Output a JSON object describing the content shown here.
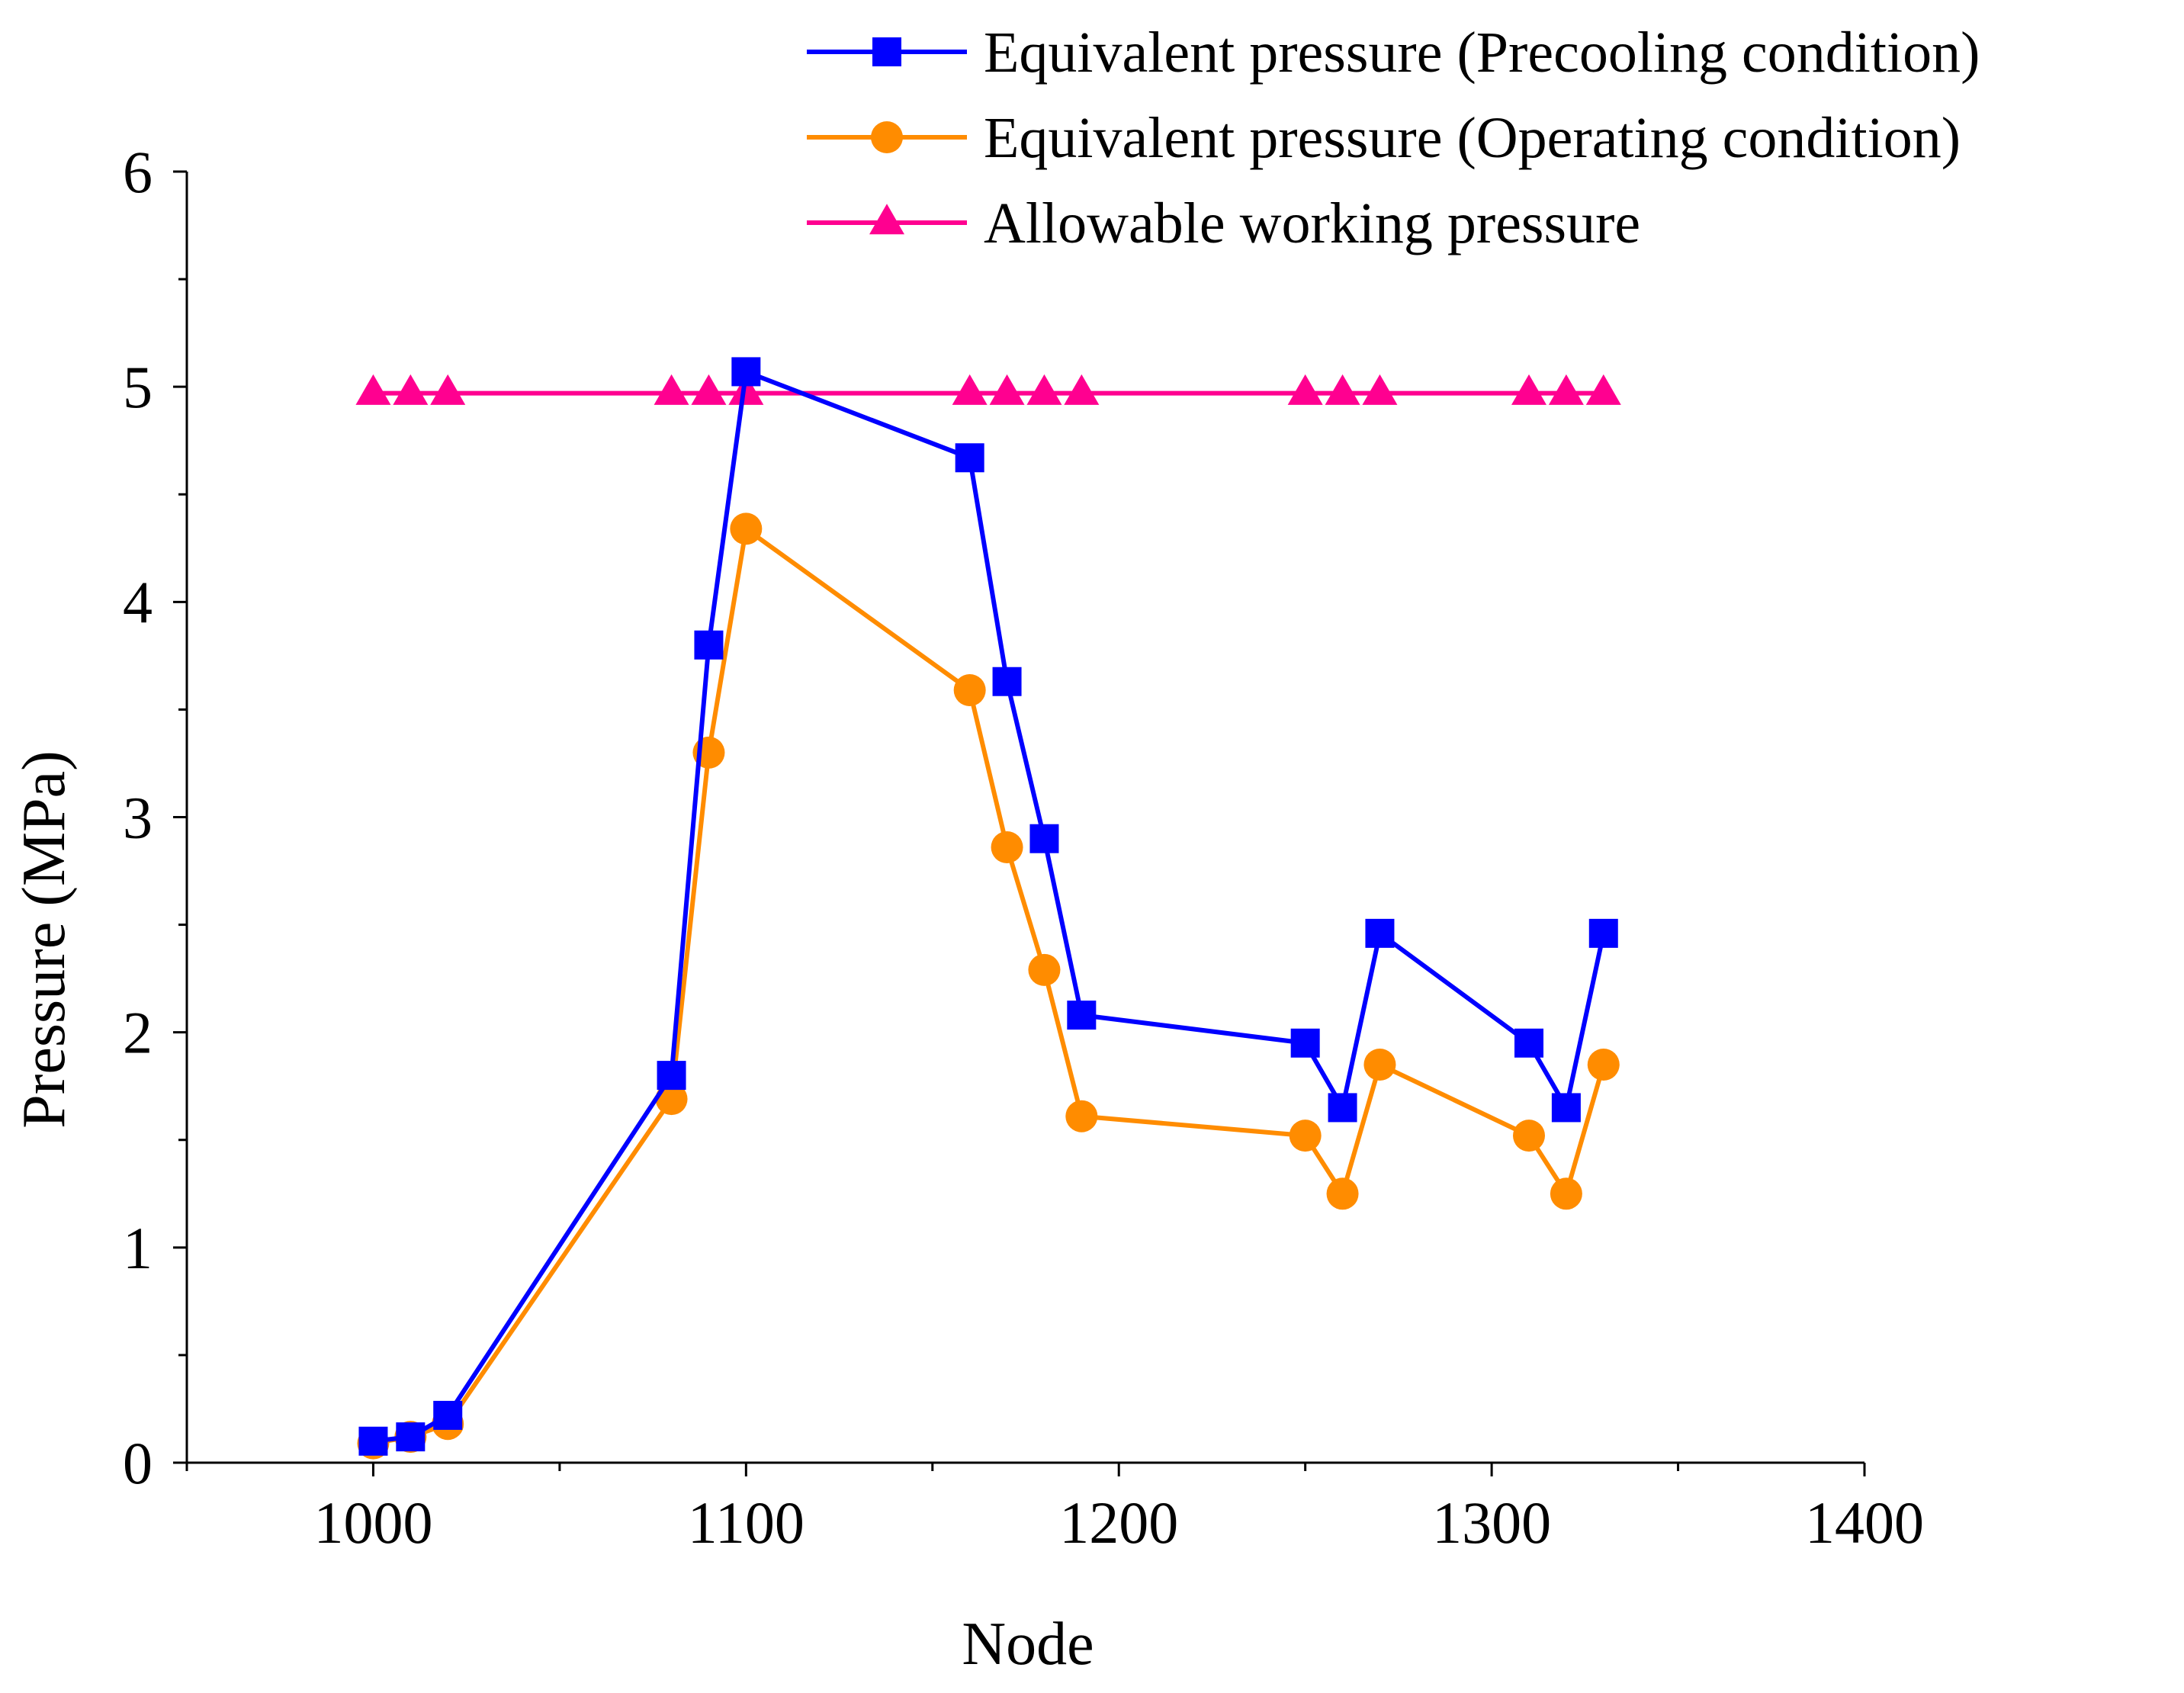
{
  "chart_data": {
    "type": "line",
    "title": "",
    "xlabel": "Node",
    "ylabel": "Pressure (MPa)",
    "xlim": [
      950,
      1400
    ],
    "ylim": [
      0,
      6
    ],
    "x_ticks": [
      1000,
      1100,
      1200,
      1300,
      1400
    ],
    "y_ticks": [
      0,
      1,
      2,
      3,
      4,
      5,
      6
    ],
    "x_tick_labels": [
      "1000",
      "1100",
      "1200",
      "1300",
      "1400"
    ],
    "y_tick_labels": [
      "0",
      "1",
      "2",
      "3",
      "4",
      "5",
      "6"
    ],
    "grid": false,
    "legend_position": "top-right",
    "series": [
      {
        "name": "Equivalent pressure (Precooling condition)",
        "color": "#0000ff",
        "marker": "square",
        "x": [
          1000,
          1010,
          1020,
          1080,
          1090,
          1100,
          1160,
          1170,
          1180,
          1190,
          1250,
          1260,
          1270,
          1310,
          1320,
          1330
        ],
        "values": [
          0.1,
          0.12,
          0.22,
          1.8,
          3.8,
          5.07,
          4.67,
          3.63,
          2.9,
          2.08,
          1.95,
          1.65,
          2.46,
          1.95,
          1.65,
          2.46
        ]
      },
      {
        "name": "Equivalent pressure (Operating condition)",
        "color": "#ff8c00",
        "marker": "circle",
        "x": [
          1000,
          1010,
          1020,
          1080,
          1090,
          1100,
          1160,
          1170,
          1180,
          1190,
          1250,
          1260,
          1270,
          1310,
          1320,
          1330
        ],
        "values": [
          0.09,
          0.12,
          0.18,
          1.69,
          3.3,
          4.34,
          3.59,
          2.86,
          2.29,
          1.61,
          1.52,
          1.25,
          1.85,
          1.52,
          1.25,
          1.85
        ]
      },
      {
        "name": "Allowable working pressure",
        "color": "#ff0090",
        "marker": "triangle",
        "x": [
          1000,
          1010,
          1020,
          1080,
          1090,
          1100,
          1160,
          1170,
          1180,
          1190,
          1250,
          1260,
          1270,
          1310,
          1320,
          1330
        ],
        "values": [
          4.97,
          4.97,
          4.97,
          4.97,
          4.97,
          4.97,
          4.97,
          4.97,
          4.97,
          4.97,
          4.97,
          4.97,
          4.97,
          4.97,
          4.97,
          4.97
        ]
      }
    ]
  }
}
